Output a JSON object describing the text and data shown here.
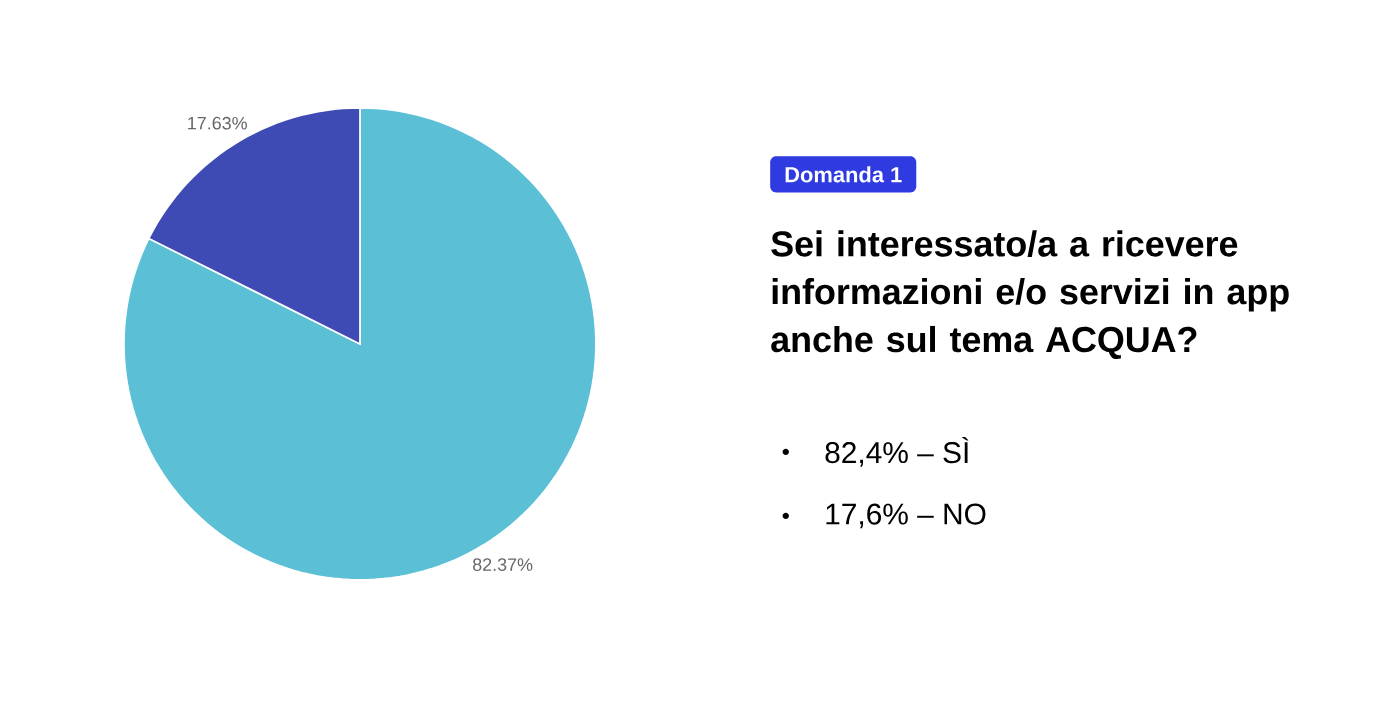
{
  "chart_data": {
    "type": "pie",
    "subtitle": "Domanda 1",
    "title": "Sei interessato/a a ricevere informazioni e/o servizi in app anche sul tema ACQUA?",
    "categories": [
      null,
      null
    ],
    "values": [
      82.37,
      17.63
    ],
    "colors": [
      "#5bbfd6",
      "#3f4bb4"
    ],
    "value_labels": [
      "82.37%",
      "17.63%"
    ],
    "annotations": [
      "82,4% – SÌ",
      "17,6% – NO"
    ]
  }
}
